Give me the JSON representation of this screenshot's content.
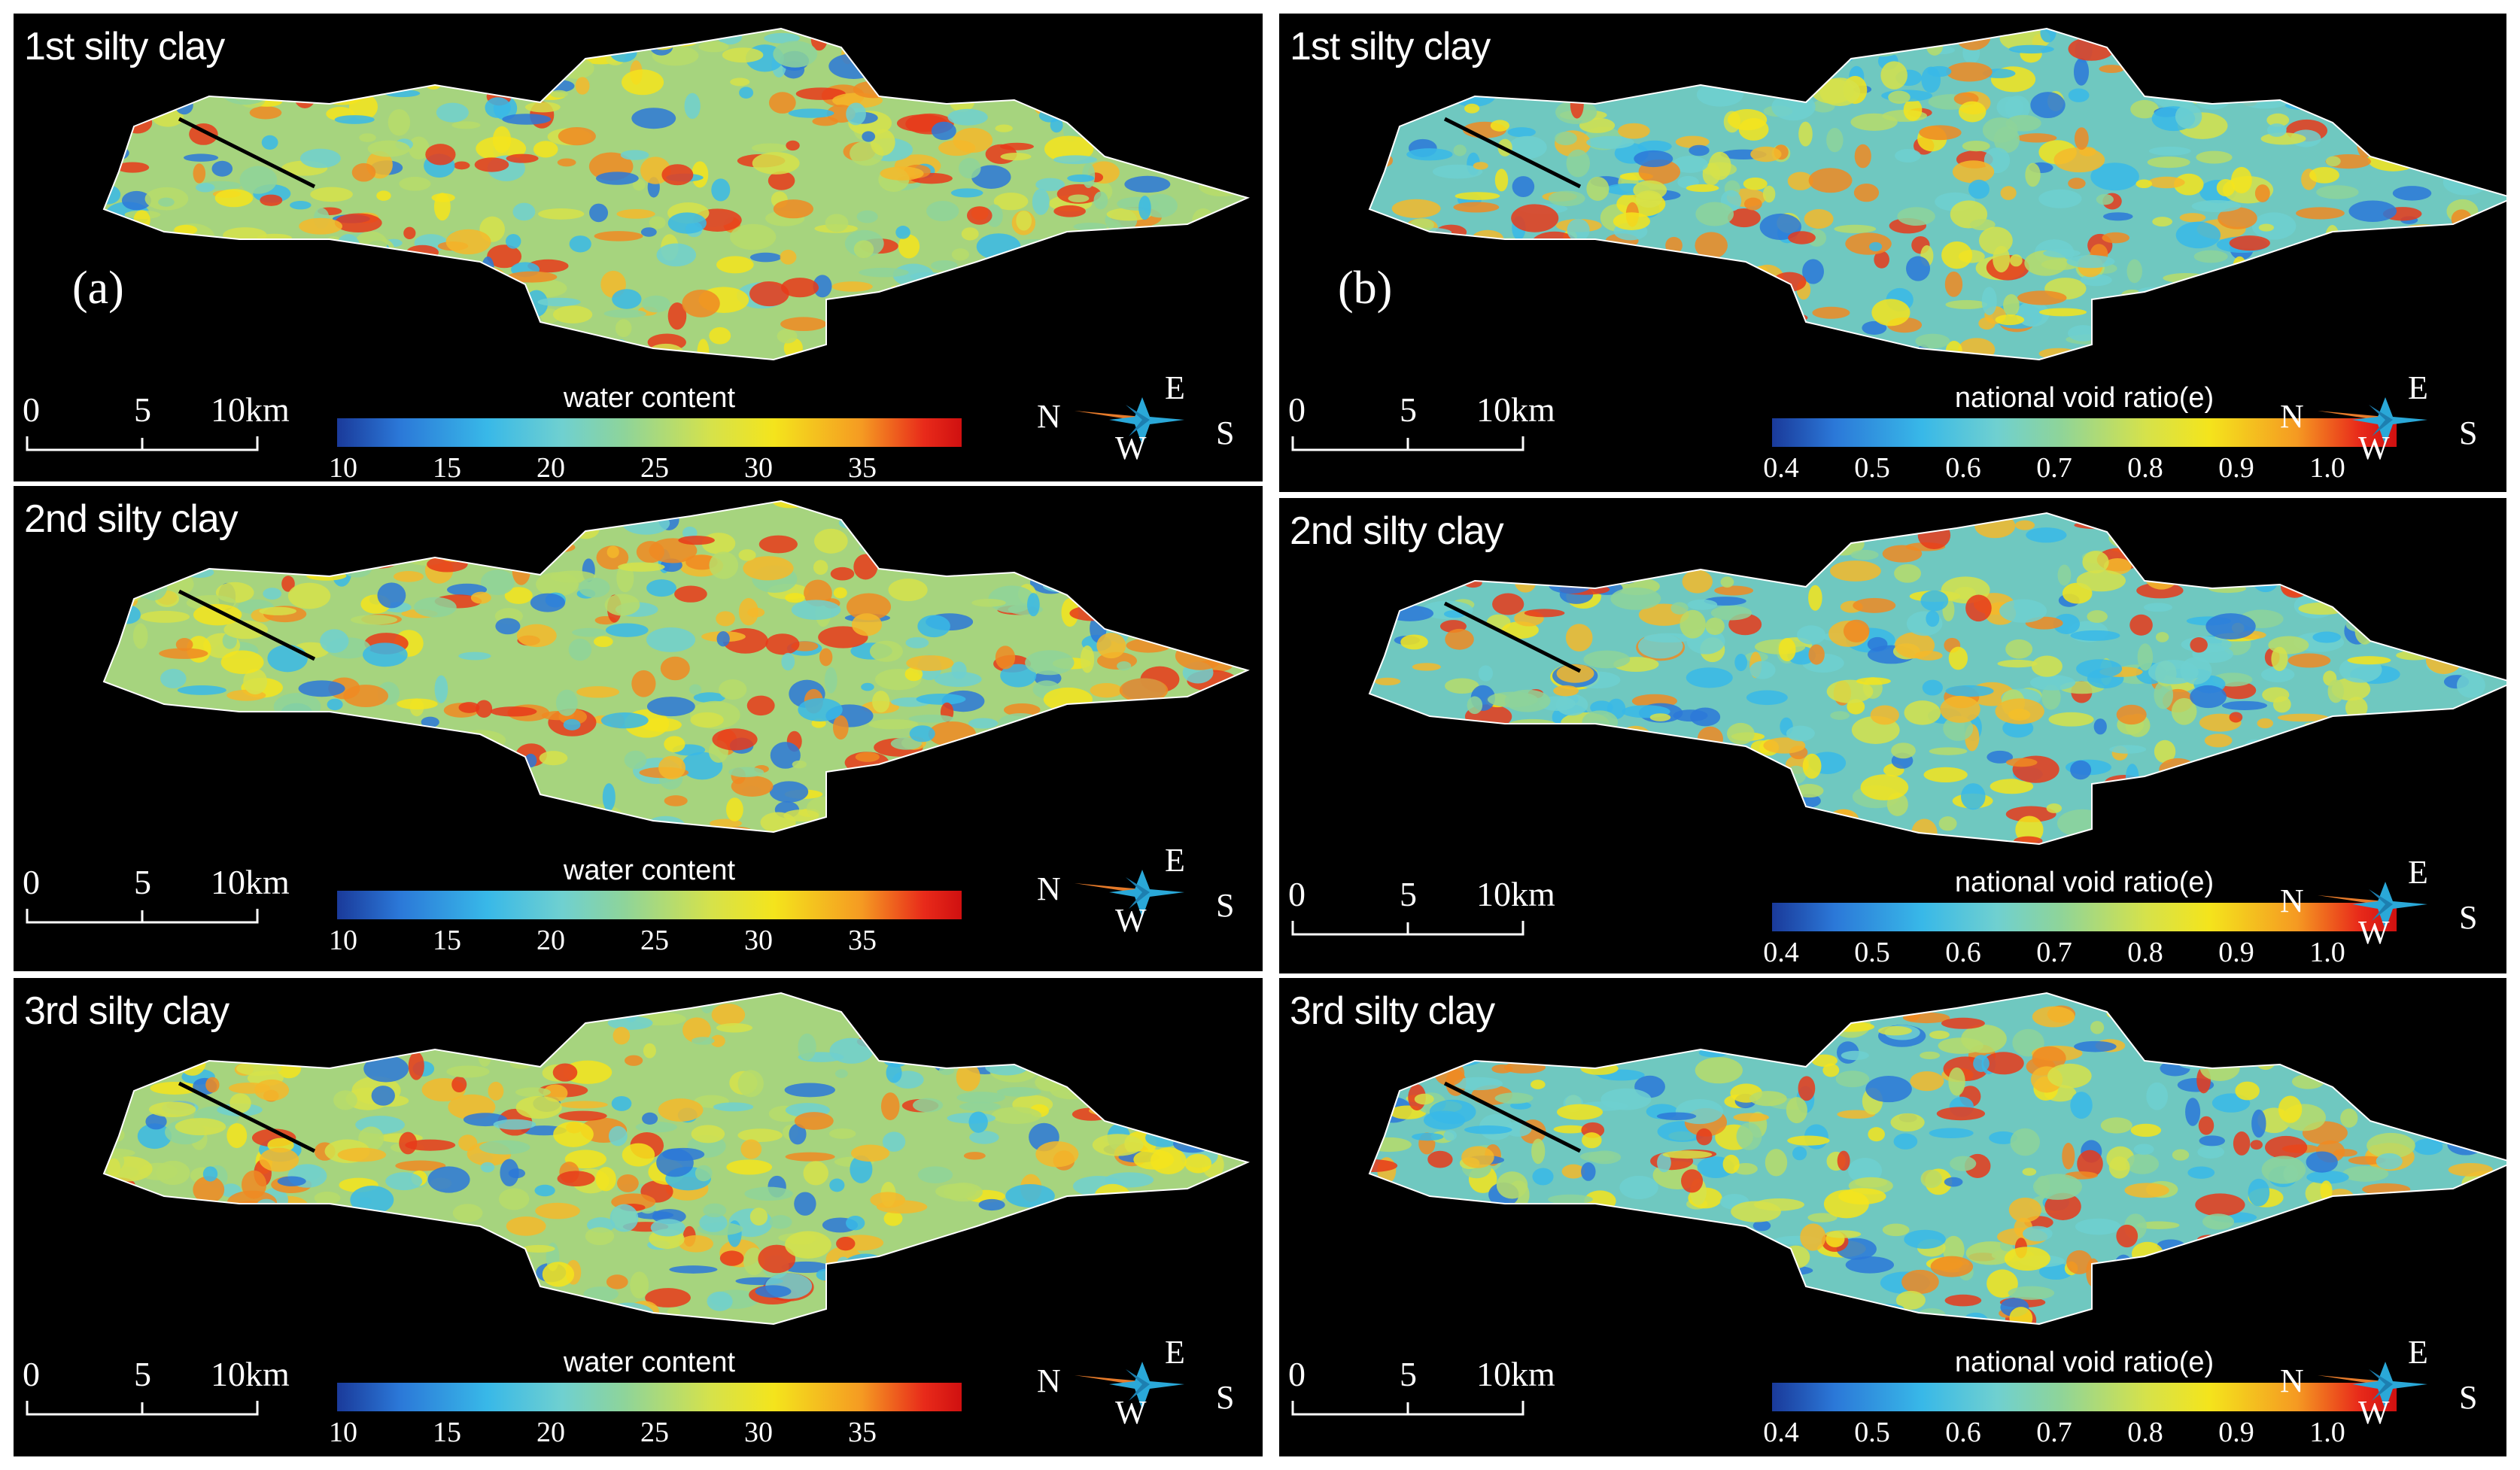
{
  "colors": {
    "ramp_low": "#1a3a9a",
    "ramp_high": "#d01010",
    "outline": "#ffffff",
    "background": "#000000"
  },
  "panels": [
    {
      "title": "1st silty clay",
      "label": "(a)",
      "colorbar_title": "water content",
      "ticks": [
        "10",
        "15",
        "20",
        "25",
        "30",
        "35"
      ],
      "scale": [
        "0",
        "5",
        "10km"
      ],
      "compass": {
        "n": "N",
        "e": "E",
        "w": "W",
        "s": "S"
      }
    },
    {
      "title": "1st silty clay",
      "label": "(b)",
      "colorbar_title": "national void ratio(e)",
      "ticks": [
        "0.4",
        "0.5",
        "0.6",
        "0.7",
        "0.8",
        "0.9",
        "1.0"
      ],
      "scale": [
        "0",
        "5",
        "10km"
      ],
      "compass": {
        "n": "N",
        "e": "E",
        "w": "W",
        "s": "S"
      }
    },
    {
      "title": "2nd silty clay",
      "label": "",
      "colorbar_title": "water content",
      "ticks": [
        "10",
        "15",
        "20",
        "25",
        "30",
        "35"
      ],
      "scale": [
        "0",
        "5",
        "10km"
      ],
      "compass": {
        "n": "N",
        "e": "E",
        "w": "W",
        "s": "S"
      }
    },
    {
      "title": "2nd silty clay",
      "label": "",
      "colorbar_title": "national void ratio(e)",
      "ticks": [
        "0.4",
        "0.5",
        "0.6",
        "0.7",
        "0.8",
        "0.9",
        "1.0"
      ],
      "scale": [
        "0",
        "5",
        "10km"
      ],
      "compass": {
        "n": "N",
        "e": "E",
        "w": "W",
        "s": "S"
      }
    },
    {
      "title": "3rd silty clay",
      "label": "",
      "colorbar_title": "water content",
      "ticks": [
        "10",
        "15",
        "20",
        "25",
        "30",
        "35"
      ],
      "scale": [
        "0",
        "5",
        "10km"
      ],
      "compass": {
        "n": "N",
        "e": "E",
        "w": "W",
        "s": "S"
      }
    },
    {
      "title": "3rd silty clay",
      "label": "",
      "colorbar_title": "national void ratio(e)",
      "ticks": [
        "0.4",
        "0.5",
        "0.6",
        "0.7",
        "0.8",
        "0.9",
        "1.0"
      ],
      "scale": [
        "0",
        "5",
        "10km"
      ],
      "compass": {
        "n": "N",
        "e": "E",
        "w": "W",
        "s": "S"
      }
    }
  ]
}
